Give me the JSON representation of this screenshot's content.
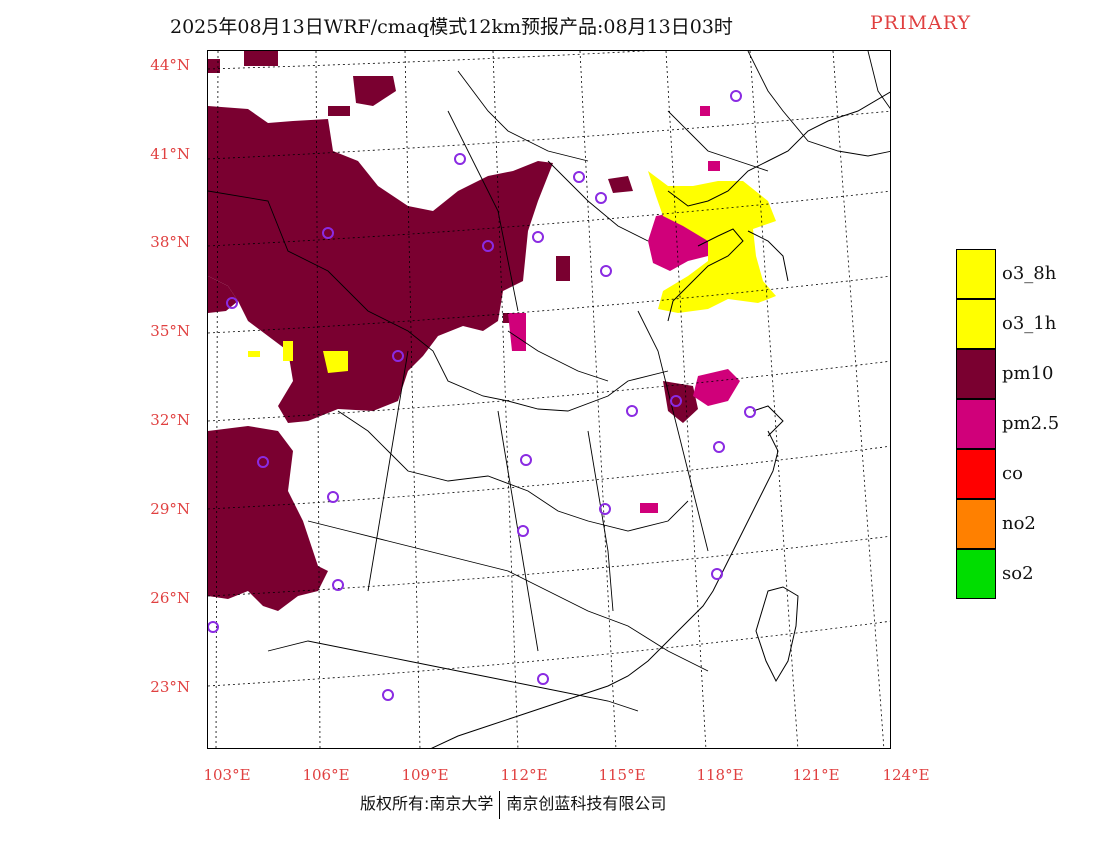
{
  "title": {
    "main": "2025年08月13日WRF/cmaq模式12km预报产品:08月13日03时",
    "tag": "PRIMARY"
  },
  "axes": {
    "lat_labels": [
      "44°N",
      "41°N",
      "38°N",
      "35°N",
      "32°N",
      "29°N",
      "26°N",
      "23°N"
    ],
    "lon_labels": [
      "103°E",
      "106°E",
      "109°E",
      "112°E",
      "115°E",
      "118°E",
      "121°E",
      "124°E"
    ]
  },
  "legend": {
    "items": [
      {
        "label": "o3_8h",
        "color": "#ffff00"
      },
      {
        "label": "o3_1h",
        "color": "#ffff00"
      },
      {
        "label": "pm10",
        "color": "#7a0030"
      },
      {
        "label": "pm2.5",
        "color": "#d0007a"
      },
      {
        "label": "co",
        "color": "#ff0000"
      },
      {
        "label": "no2",
        "color": "#ff8000"
      },
      {
        "label": "so2",
        "color": "#00dd00"
      }
    ]
  },
  "colors": {
    "pm10": "#7a0030",
    "pm25": "#d0007a",
    "o3": "#ffff00",
    "label_red": "#e04040",
    "station": "#8a2be2"
  },
  "footer": {
    "left": "版权所有:南京大学",
    "right": "南京创蓝科技有限公司"
  }
}
